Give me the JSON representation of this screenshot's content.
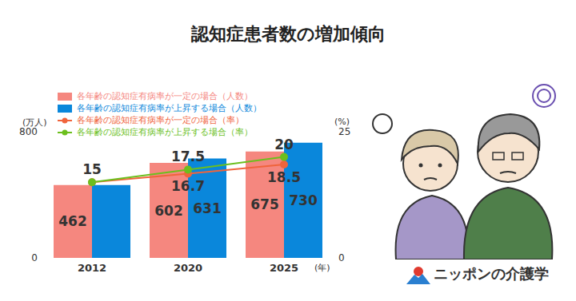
{
  "logo": "ニッポンの介護学",
  "chart_data": {
    "type": "bar",
    "title": "認知症患者数の増加傾向",
    "y_label": "(万人)",
    "y2_label": "(%)",
    "x_label": "(年)",
    "categories": [
      "2012",
      "2020",
      "2025"
    ],
    "ylim": [
      0,
      800
    ],
    "yticks": [
      0,
      800
    ],
    "y2lim": [
      0,
      25
    ],
    "y2ticks": [
      0,
      25
    ],
    "grid": false,
    "legend": "top-left",
    "data_labels": true,
    "series": [
      {
        "name": "各年齢の認知症有病率が一定の場合（人数）",
        "type": "bar",
        "color": "#f5877f",
        "values": [
          462,
          602,
          675
        ],
        "value_labels": [
          "462",
          "602",
          "675"
        ]
      },
      {
        "name": "各年齢の認知症有病率が上昇する場合（人数）",
        "type": "bar",
        "color": "#0a87db",
        "values": [
          462,
          631,
          730
        ],
        "value_labels": [
          null,
          "631",
          "730"
        ]
      },
      {
        "name": "各年齢の認知症有病率が一定の場合（率）",
        "type": "line",
        "axis": "y2",
        "marker": "circle",
        "color": "#f0643c",
        "values": [
          15,
          16.7,
          18.5
        ],
        "value_labels": [
          null,
          "16.7",
          "18.5"
        ]
      },
      {
        "name": "各年齢の認知症有病率が上昇する場合（率）",
        "type": "line",
        "axis": "y2",
        "marker": "circle",
        "color": "#6cbf1e",
        "values": [
          15,
          17.5,
          20
        ],
        "value_labels": [
          "15",
          "17.5",
          "20"
        ]
      }
    ]
  }
}
